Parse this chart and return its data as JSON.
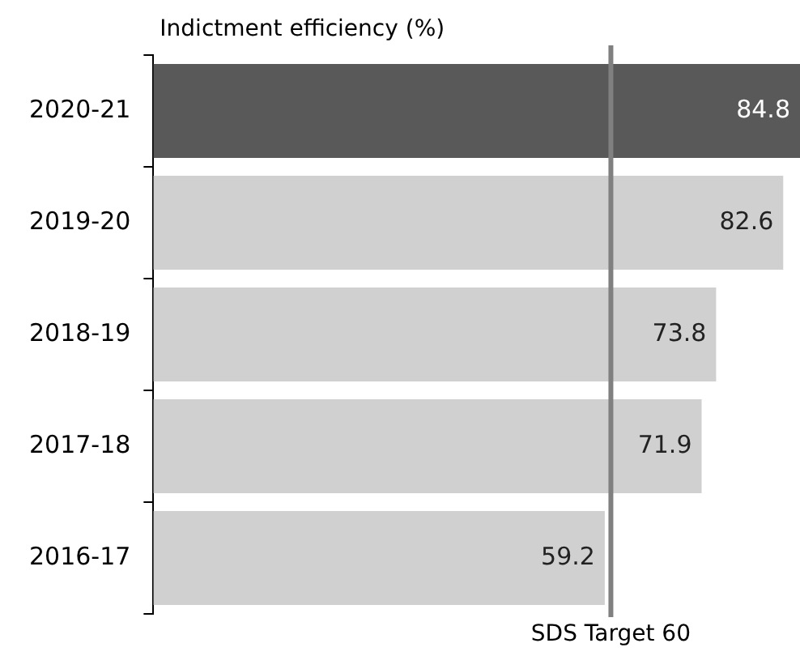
{
  "chart_data": {
    "type": "bar",
    "orientation": "horizontal",
    "title": "Indictment efficiency (%)",
    "categories": [
      "2020-21",
      "2019-20",
      "2018-19",
      "2017-18",
      "2016-17"
    ],
    "values": [
      84.8,
      82.6,
      73.8,
      71.9,
      59.2
    ],
    "colors": [
      "#595959",
      "#d0d0d0",
      "#d0d0d0",
      "#d0d0d0",
      "#d0d0d0"
    ],
    "data_labels": true,
    "grid": false,
    "legend": false,
    "ref_lines": [
      {
        "axis": "x",
        "value": 60,
        "label": "SDS Target 60",
        "color": "#808080"
      }
    ]
  }
}
